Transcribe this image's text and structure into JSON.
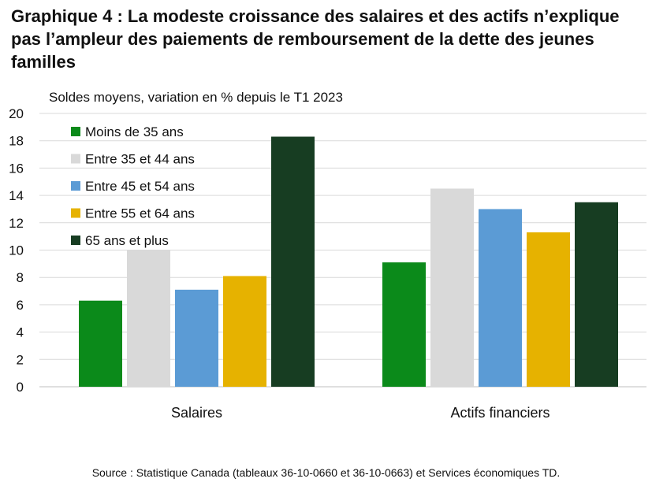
{
  "title": "Graphique 4 : La modeste croissance des salaires et des actifs n’explique pas l’ampleur des paiements de remboursement de la dette des jeunes familles",
  "source": "Source : Statistique Canada (tableaux 36-10-0660 et 36-10-0663) et Services économiques TD.",
  "chart_data": {
    "type": "bar",
    "title": "Graphique 4 : La modeste croissance des salaires et des actifs n’explique pas l’ampleur des paiements de remboursement de la dette des jeunes familles",
    "ylabel": "Soldes moyens, variation en % depuis le T1 2023",
    "xlabel": "",
    "categories": [
      "Salaires",
      "Actifs financiers"
    ],
    "ylim": [
      0,
      20
    ],
    "yticks": [
      0,
      2,
      4,
      6,
      8,
      10,
      12,
      14,
      16,
      18,
      20
    ],
    "grid": true,
    "legend_position": "top-left",
    "series": [
      {
        "name": "Moins de 35 ans",
        "color": "#0b8a1a",
        "values": [
          6.3,
          9.1
        ]
      },
      {
        "name": "Entre 35 et 44 ans",
        "color": "#d9d9d9",
        "values": [
          10.0,
          14.5
        ]
      },
      {
        "name": "Entre 45 et 54 ans",
        "color": "#5b9bd5",
        "values": [
          7.1,
          13.0
        ]
      },
      {
        "name": "Entre 55 et 64 ans",
        "color": "#e6b200",
        "values": [
          8.1,
          11.3
        ]
      },
      {
        "name": "65 ans et plus",
        "color": "#173d22",
        "values": [
          18.3,
          13.5
        ]
      }
    ]
  }
}
